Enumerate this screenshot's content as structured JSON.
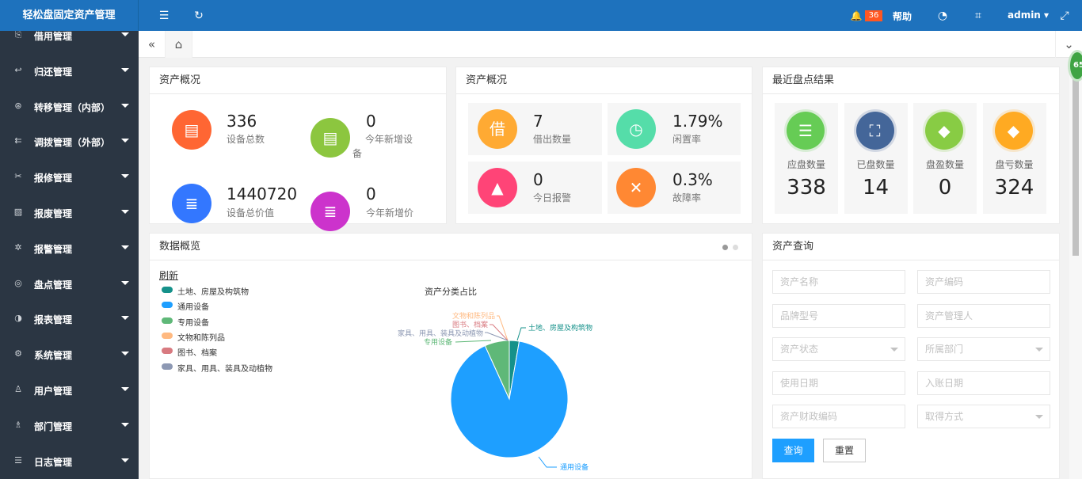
{
  "app": {
    "title": "轻松盘固定资产管理"
  },
  "header": {
    "badge_count": "36",
    "help": "帮助",
    "user": "admin"
  },
  "sidebar": {
    "items": [
      {
        "label": "借用管理",
        "icon": "borrow-icon"
      },
      {
        "label": "归还管理",
        "icon": "return-icon"
      },
      {
        "label": "转移管理（内部）",
        "icon": "transfer-icon"
      },
      {
        "label": "调拨管理（外部）",
        "icon": "allocate-icon"
      },
      {
        "label": "报修管理",
        "icon": "repair-icon"
      },
      {
        "label": "报废管理",
        "icon": "scrap-icon"
      },
      {
        "label": "报警管理",
        "icon": "alarm-icon"
      },
      {
        "label": "盘点管理",
        "icon": "inventory-icon"
      },
      {
        "label": "报表管理",
        "icon": "report-icon"
      },
      {
        "label": "系统管理",
        "icon": "settings-icon"
      },
      {
        "label": "用户管理",
        "icon": "user-icon"
      },
      {
        "label": "部门管理",
        "icon": "department-icon"
      },
      {
        "label": "日志管理",
        "icon": "log-icon"
      }
    ]
  },
  "overview1": {
    "title": "资产概况",
    "stats": [
      {
        "value": "336",
        "label": "设备总数",
        "color": "#ff6633",
        "icon": "device-icon"
      },
      {
        "value": "0",
        "label": "今年新增设备",
        "color": "#8cc63f",
        "icon": "new-device-icon"
      },
      {
        "value": "1440720",
        "label": "设备总价值",
        "color": "#3377ff",
        "icon": "database-icon"
      },
      {
        "value": "0",
        "label": "今年新增价",
        "color": "#cc33cc",
        "icon": "database-icon"
      }
    ]
  },
  "overview2": {
    "title": "资产概况",
    "stats": [
      {
        "value": "7",
        "label": "借出数量",
        "color": "#ffaa33",
        "icon": "borrow-out-icon"
      },
      {
        "value": "1.79%",
        "label": "闲置率",
        "color": "#55dda9",
        "icon": "clock-icon"
      },
      {
        "value": "0",
        "label": "今日报警",
        "color": "#ff4477",
        "icon": "warning-icon"
      },
      {
        "value": "0.3%",
        "label": "故障率",
        "color": "#ff8833",
        "icon": "tools-icon"
      }
    ]
  },
  "inventory": {
    "title": "最近盘点结果",
    "items": [
      {
        "label": "应盘数量",
        "value": "338",
        "color": "#66cc55",
        "icon": "list-icon"
      },
      {
        "label": "已盘数量",
        "value": "14",
        "color": "#446699",
        "icon": "scan-icon"
      },
      {
        "label": "盘盈数量",
        "value": "0",
        "color": "#88cc44",
        "icon": "diamond-icon"
      },
      {
        "label": "盘亏数量",
        "value": "324",
        "color": "#ffaa22",
        "icon": "diamond-icon"
      }
    ]
  },
  "data_panel": {
    "title": "数据概览",
    "refresh": "刷新"
  },
  "chart_data": {
    "type": "pie",
    "title": "资产分类占比",
    "categories": [
      "土地、房屋及构筑物",
      "通用设备",
      "专用设备",
      "文物和陈列品",
      "图书、档案",
      "家具、用具、装具及动植物"
    ],
    "values": [
      2.7,
      90.5,
      6.8,
      0,
      0,
      0
    ],
    "colors": [
      "#15918a",
      "#1e9fff",
      "#5fb878",
      "#ffb980",
      "#d87a80",
      "#8d98b3"
    ],
    "legend": "top-left"
  },
  "query": {
    "title": "资产查询",
    "fields": [
      {
        "placeholder": "资产名称",
        "select": false
      },
      {
        "placeholder": "资产编码",
        "select": false
      },
      {
        "placeholder": "品牌型号",
        "select": false
      },
      {
        "placeholder": "资产管理人",
        "select": false
      },
      {
        "placeholder": "资产状态",
        "select": true
      },
      {
        "placeholder": "所属部门",
        "select": true
      },
      {
        "placeholder": "使用日期",
        "select": false
      },
      {
        "placeholder": "入账日期",
        "select": false
      },
      {
        "placeholder": "资产财政编码",
        "select": false
      },
      {
        "placeholder": "取得方式",
        "select": true
      }
    ],
    "search": "查询",
    "reset": "重置"
  },
  "float_badge": "65"
}
